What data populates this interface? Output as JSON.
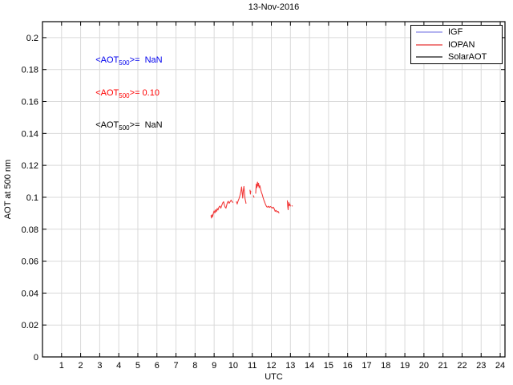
{
  "chart_data": {
    "type": "line",
    "title": "13-Nov-2016",
    "xlabel": "UTC",
    "ylabel": "AOT at 500 nm",
    "xlim": [
      0,
      24.25
    ],
    "ylim": [
      0,
      0.21
    ],
    "grid": true,
    "xticks": [
      1,
      2,
      3,
      4,
      5,
      6,
      7,
      8,
      9,
      10,
      11,
      12,
      13,
      14,
      15,
      16,
      17,
      18,
      19,
      20,
      21,
      22,
      23,
      24
    ],
    "yticks": [
      0,
      0.02,
      0.04,
      0.06,
      0.08,
      0.1,
      0.12,
      0.14,
      0.16,
      0.18,
      0.2
    ],
    "ytick_labels": [
      "0",
      "0.02",
      "0.04",
      "0.06",
      "0.08",
      "0.1",
      "0.12",
      "0.14",
      "0.16",
      "0.18",
      "0.2"
    ],
    "colors": {
      "background": "#ffffff",
      "grid": "#d9d9d9",
      "axis": "#000000"
    },
    "legend": {
      "position": "top-right",
      "entries": [
        {
          "label": "IGF",
          "line_color": "#b4b4f0"
        },
        {
          "label": "IOPAN",
          "line_color": "#f08080"
        },
        {
          "label": "SolarAOT",
          "line_color": "#6e6e6e"
        }
      ]
    },
    "annotations": [
      {
        "prefix": "<AOT",
        "sub": "500",
        "suffix": ">=  NaN",
        "color": "#0000ee",
        "series": "IGF"
      },
      {
        "prefix": "<AOT",
        "sub": "500",
        "suffix": ">= 0.10",
        "color": "#ff0000",
        "series": "IOPAN"
      },
      {
        "prefix": "<AOT",
        "sub": "500",
        "suffix": ">=  NaN",
        "color": "#000000",
        "series": "SolarAOT"
      }
    ],
    "series": [
      {
        "name": "IGF",
        "color": "#0000ff",
        "segments": []
      },
      {
        "name": "IOPAN",
        "color": "#f23b3b",
        "segments": [
          [
            [
              8.84,
              0.0885
            ],
            [
              8.86,
              0.087
            ],
            [
              8.89,
              0.089
            ],
            [
              8.92,
              0.0878
            ],
            [
              8.96,
              0.09
            ],
            [
              9.0,
              0.0915
            ],
            [
              9.04,
              0.0902
            ],
            [
              9.08,
              0.0922
            ],
            [
              9.12,
              0.091
            ],
            [
              9.16,
              0.093
            ],
            [
              9.2,
              0.092
            ],
            [
              9.25,
              0.0938
            ],
            [
              9.3,
              0.0945
            ],
            [
              9.35,
              0.0932
            ],
            [
              9.4,
              0.095
            ],
            [
              9.45,
              0.0965
            ],
            [
              9.5,
              0.0972
            ],
            [
              9.54,
              0.095
            ],
            [
              9.58,
              0.0938
            ],
            [
              9.62,
              0.0932
            ],
            [
              9.66,
              0.095
            ],
            [
              9.7,
              0.0968
            ],
            [
              9.74,
              0.0975
            ],
            [
              9.79,
              0.0962
            ],
            [
              9.84,
              0.0972
            ],
            [
              9.89,
              0.0982
            ],
            [
              9.94,
              0.0972
            ],
            [
              9.98,
              0.0968
            ]
          ],
          [
            [
              10.17,
              0.0972
            ],
            [
              10.21,
              0.0958
            ],
            [
              10.25,
              0.0975
            ],
            [
              10.3,
              0.099
            ],
            [
              10.35,
              0.101
            ],
            [
              10.4,
              0.1035
            ],
            [
              10.44,
              0.1065
            ],
            [
              10.47,
              0.103
            ],
            [
              10.5,
              0.0995
            ],
            [
              10.53,
              0.104
            ],
            [
              10.56,
              0.1068
            ],
            [
              10.59,
              0.103
            ],
            [
              10.62,
              0.099
            ],
            [
              10.65,
              0.0975
            ],
            [
              10.67,
              0.0962
            ]
          ],
          [
            [
              10.88,
              0.1045
            ],
            [
              10.9,
              0.102
            ],
            [
              10.92,
              0.1038
            ]
          ],
          [
            [
              11.06,
              0.101
            ],
            [
              11.09,
              0.1
            ]
          ],
          [
            [
              11.18,
              0.1025
            ],
            [
              11.21,
              0.1082
            ],
            [
              11.24,
              0.106
            ],
            [
              11.27,
              0.1095
            ],
            [
              11.3,
              0.107
            ],
            [
              11.33,
              0.1088
            ],
            [
              11.36,
              0.106
            ],
            [
              11.4,
              0.1072
            ],
            [
              11.44,
              0.1048
            ],
            [
              11.48,
              0.103
            ],
            [
              11.52,
              0.1018
            ],
            [
              11.56,
              0.1
            ],
            [
              11.6,
              0.0985
            ],
            [
              11.64,
              0.0972
            ],
            [
              11.68,
              0.096
            ],
            [
              11.72,
              0.0948
            ],
            [
              11.76,
              0.094
            ],
            [
              11.8,
              0.0938
            ],
            [
              11.85,
              0.0944
            ],
            [
              11.9,
              0.0936
            ],
            [
              11.95,
              0.0942
            ],
            [
              12.0,
              0.0938
            ],
            [
              12.05,
              0.0932
            ],
            [
              12.1,
              0.0938
            ],
            [
              12.15,
              0.0928
            ],
            [
              12.2,
              0.0912
            ],
            [
              12.25,
              0.0918
            ],
            [
              12.3,
              0.0908
            ],
            [
              12.35,
              0.0912
            ],
            [
              12.4,
              0.0902
            ]
          ],
          [
            [
              12.84,
              0.0978
            ],
            [
              12.86,
              0.094
            ],
            [
              12.88,
              0.0922
            ],
            [
              12.91,
              0.0968
            ],
            [
              12.94,
              0.0948
            ],
            [
              12.97,
              0.0958
            ],
            [
              13.0,
              0.0945
            ]
          ],
          [
            [
              13.08,
              0.0947
            ],
            [
              13.1,
              0.0945
            ]
          ]
        ]
      },
      {
        "name": "SolarAOT",
        "color": "#000000",
        "segments": []
      }
    ]
  }
}
